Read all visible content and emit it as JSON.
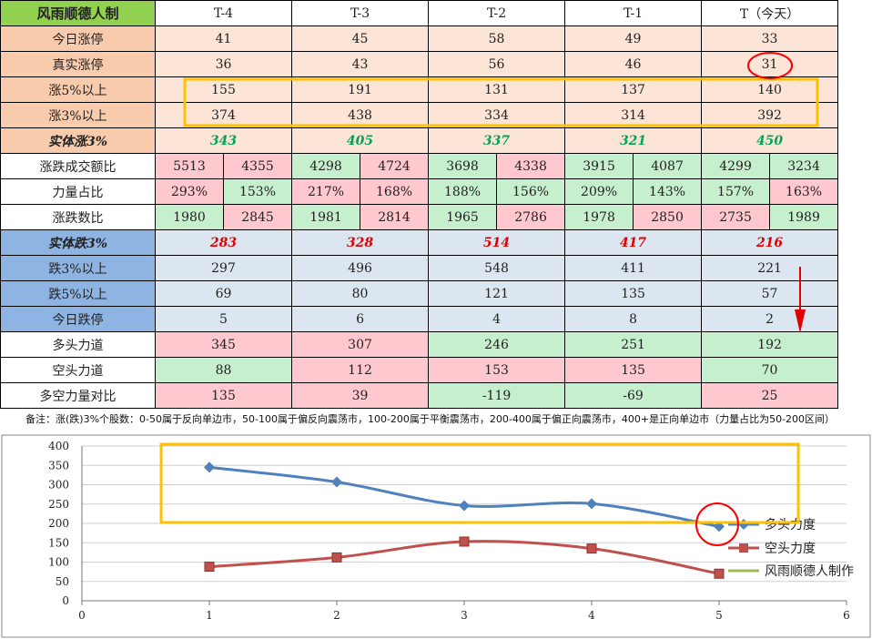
{
  "table": {
    "title": "风雨顺德人制",
    "columns": [
      "T-4",
      "T-3",
      "T-2",
      "T-1",
      "T（今天）"
    ],
    "rows_simple_top": [
      {
        "label": "今日涨停",
        "values": [
          "41",
          "45",
          "58",
          "49",
          "33"
        ]
      },
      {
        "label": "真实涨停",
        "values": [
          "36",
          "43",
          "56",
          "46",
          "31"
        ]
      },
      {
        "label": "涨5%以上",
        "values": [
          "155",
          "191",
          "131",
          "137",
          "140"
        ]
      },
      {
        "label": "涨3%以上",
        "values": [
          "374",
          "438",
          "334",
          "314",
          "392"
        ]
      }
    ],
    "solid_up": {
      "label": "实体涨3%",
      "values": [
        "343",
        "405",
        "337",
        "321",
        "450"
      ]
    },
    "ratio_rows": [
      {
        "label": "涨跌成交额比",
        "pairs": [
          [
            "5513",
            "4355"
          ],
          [
            "4298",
            "4724"
          ],
          [
            "3698",
            "4338"
          ],
          [
            "3915",
            "4087"
          ],
          [
            "4299",
            "3234"
          ]
        ],
        "colors": [
          [
            "red",
            "red"
          ],
          [
            "green",
            "red"
          ],
          [
            "green",
            "red"
          ],
          [
            "green",
            "green"
          ],
          [
            "green",
            "green"
          ]
        ]
      },
      {
        "label": "力量占比",
        "pairs": [
          [
            "293%",
            "153%"
          ],
          [
            "217%",
            "168%"
          ],
          [
            "188%",
            "156%"
          ],
          [
            "209%",
            "143%"
          ],
          [
            "157%",
            "163%"
          ]
        ],
        "colors": [
          [
            "red",
            "green"
          ],
          [
            "red",
            "red"
          ],
          [
            "green",
            "green"
          ],
          [
            "green",
            "green"
          ],
          [
            "green",
            "red"
          ]
        ]
      },
      {
        "label": "涨跌数比",
        "pairs": [
          [
            "1980",
            "2845"
          ],
          [
            "1981",
            "2814"
          ],
          [
            "1965",
            "2786"
          ],
          [
            "1978",
            "2850"
          ],
          [
            "2735",
            "1989"
          ]
        ],
        "colors": [
          [
            "green",
            "red"
          ],
          [
            "green",
            "red"
          ],
          [
            "green",
            "red"
          ],
          [
            "green",
            "red"
          ],
          [
            "red",
            "green"
          ]
        ]
      }
    ],
    "solid_down": {
      "label": "实体跌3%",
      "values": [
        "283",
        "328",
        "514",
        "417",
        "216"
      ]
    },
    "rows_simple_bottom": [
      {
        "label": "跌3%以上",
        "values": [
          "297",
          "496",
          "548",
          "411",
          "221"
        ]
      },
      {
        "label": "跌5%以上",
        "values": [
          "69",
          "80",
          "121",
          "135",
          "57"
        ]
      },
      {
        "label": "今日跌停",
        "values": [
          "5",
          "6",
          "4",
          "8",
          "2"
        ]
      }
    ],
    "force_rows": [
      {
        "label": "多头力道",
        "values": [
          "345",
          "307",
          "246",
          "251",
          "192"
        ],
        "colors": [
          "red",
          "red",
          "green",
          "green",
          "green"
        ]
      },
      {
        "label": "空头力道",
        "values": [
          "88",
          "112",
          "153",
          "135",
          "70"
        ],
        "colors": [
          "green",
          "red",
          "red",
          "red",
          "green"
        ]
      },
      {
        "label": "多空力量对比",
        "values": [
          "135",
          "39",
          "-119",
          "-69",
          "25"
        ],
        "colors": [
          "red",
          "red",
          "green",
          "green",
          "red"
        ]
      }
    ]
  },
  "note": "备注：涨(跌)3%个股数：0-50属于反向单边市，50-100属于偏反向震荡市，100-200属于平衡震荡市，200-400属于偏正向震荡市，400+是正向单边市（力量占比为50-200区间）",
  "colors": {
    "series1": "#4f81bd",
    "series2": "#c0504d",
    "series3": "#9bbb59",
    "highlight_box": "#ffc000",
    "circle": "#ff0000"
  },
  "chart_data": {
    "type": "scatter",
    "xlim": [
      0,
      6
    ],
    "ylim": [
      0,
      400
    ],
    "xticks": [
      "0",
      "1",
      "2",
      "3",
      "4",
      "5",
      "6"
    ],
    "yticks": [
      "0",
      "50",
      "100",
      "150",
      "200",
      "250",
      "300",
      "350",
      "400"
    ],
    "grid": true,
    "legend_position": "right",
    "series": [
      {
        "name": "多头力度",
        "x": [
          1,
          2,
          3,
          4,
          5
        ],
        "y": [
          345,
          307,
          246,
          251,
          192
        ]
      },
      {
        "name": "空头力度",
        "x": [
          1,
          2,
          3,
          4,
          5
        ],
        "y": [
          88,
          112,
          153,
          135,
          70
        ]
      },
      {
        "name": "风雨顺德人制作",
        "x": [],
        "y": []
      }
    ]
  }
}
